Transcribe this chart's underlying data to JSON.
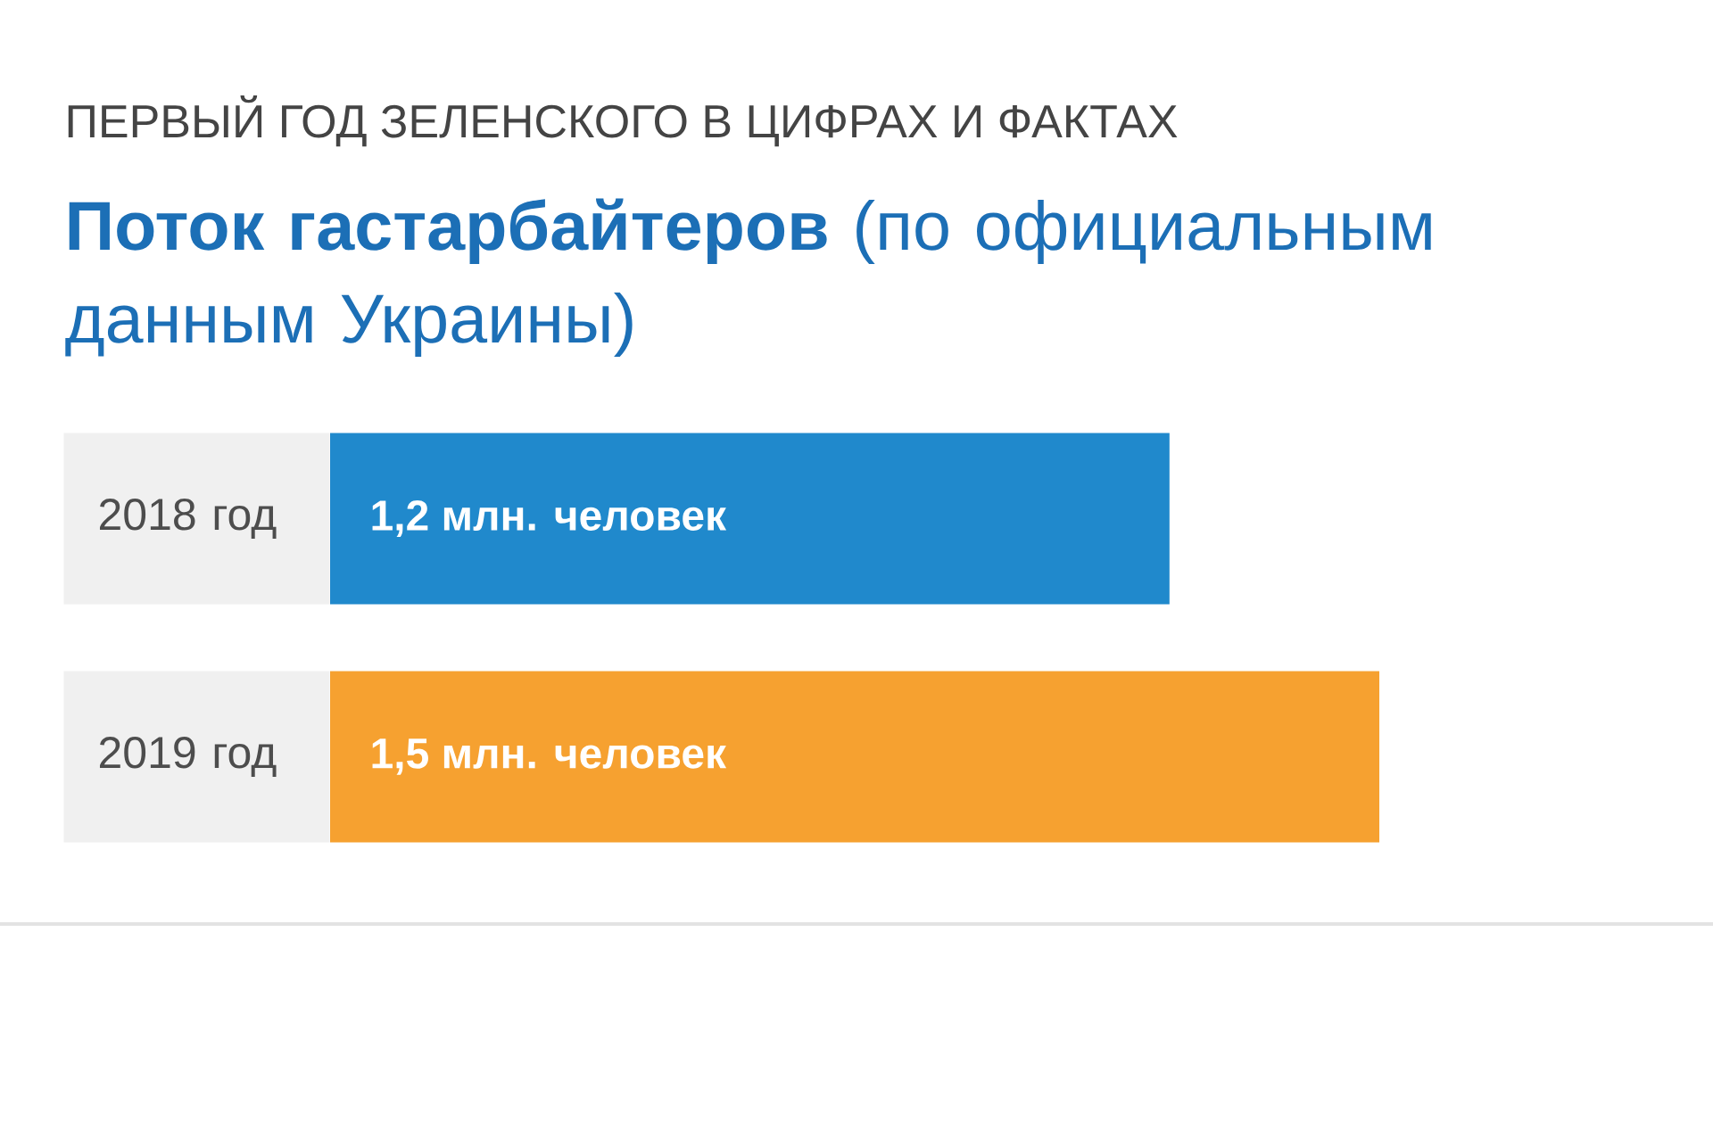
{
  "chart_data": {
    "type": "bar",
    "orientation": "horizontal",
    "title": "**Поток гастарбайтеров** (по официальным данным Украины)",
    "subtitle": "ПЕРВЫЙ ГОД ЗЕЛЕНСКОГО В ЦИФРАХ И ФАКТАХ",
    "categories": [
      "2018 год",
      "2019 год"
    ],
    "values": [
      1.2,
      1.5
    ],
    "colors": [
      "#2089cc",
      "#f6a130"
    ],
    "value_labels": [
      "1,2 млн. человек",
      "1,5 млн. человек"
    ],
    "tick_labels": "y"
  }
}
